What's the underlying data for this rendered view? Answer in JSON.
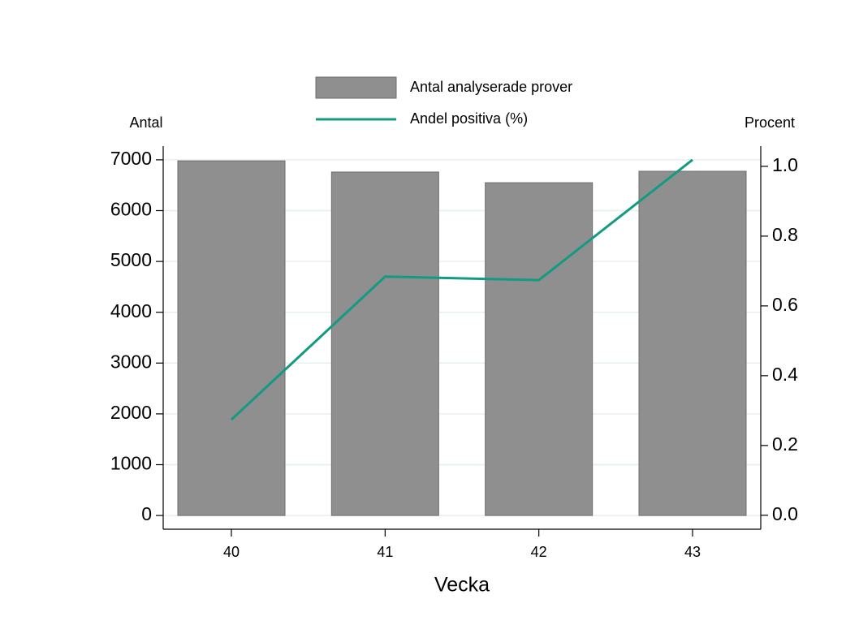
{
  "chart_data": {
    "type": "bar",
    "x_label": "Vecka",
    "y_label": "Antal",
    "y2_label": "Procent",
    "categories": [
      "40",
      "41",
      "42",
      "43"
    ],
    "series": [
      {
        "name": "Antal analyserade prover",
        "type": "bar",
        "color": "#8f8f8f",
        "values": [
          6980,
          6760,
          6550,
          6775
        ]
      },
      {
        "name": "Andel positiva (%)",
        "type": "line",
        "axis": "y2",
        "color": "#139a83",
        "values": [
          0.274,
          0.684,
          0.674,
          1.019
        ]
      }
    ],
    "ylim": [
      -270,
      7270
    ],
    "yticks": [
      0,
      1000,
      2000,
      3000,
      4000,
      5000,
      6000,
      7000
    ],
    "y2lim": [
      -0.04,
      1.058
    ],
    "y2ticks": [
      {
        "value": 0,
        "label": "0.0"
      },
      0.2,
      0.4,
      0.6,
      0.8,
      {
        "value": 1,
        "label": "1.0"
      }
    ],
    "grid": true
  }
}
